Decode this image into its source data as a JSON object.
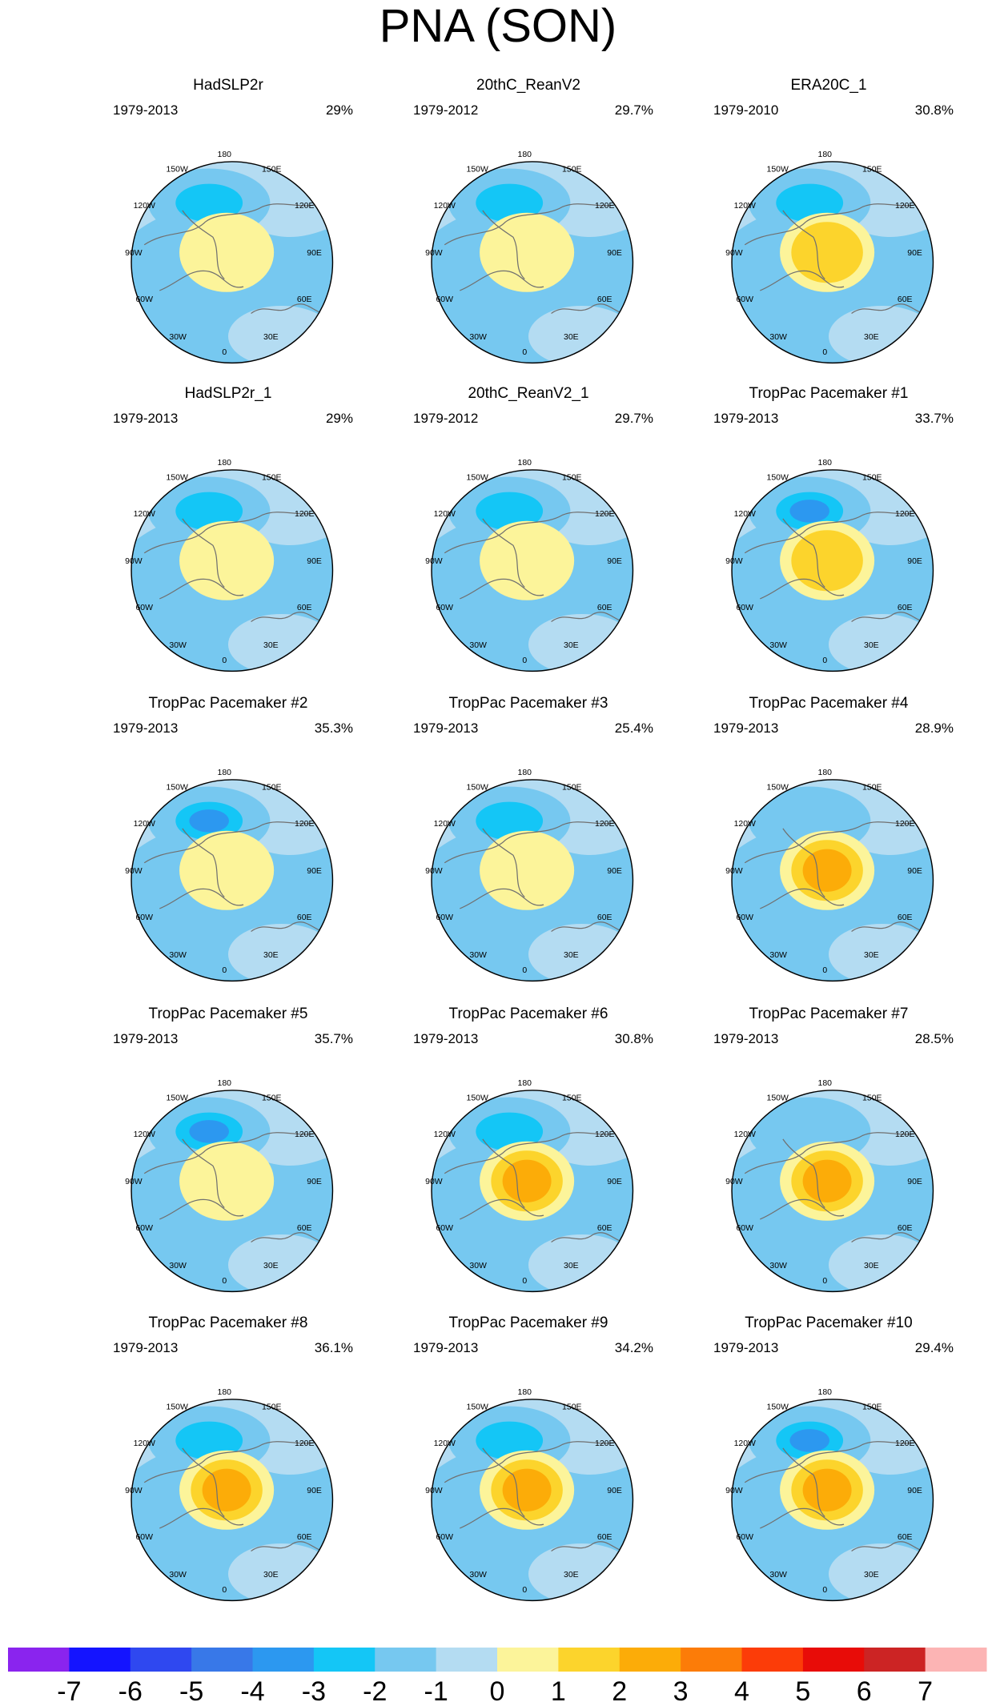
{
  "title": "PNA (SON)",
  "chart_data": {
    "type": "polar-contour-map-grid",
    "variable": "PNA sea level pressure pattern (SON)",
    "projection": "north-polar-stereographic",
    "longitude_labels": [
      "180",
      "150W",
      "150E",
      "120W",
      "120E",
      "90W",
      "90E",
      "60W",
      "60E",
      "30W",
      "30E",
      "0"
    ],
    "panels": [
      {
        "title": "HadSLP2r",
        "years": "1979-2013",
        "pct": "29%",
        "low": -2.6,
        "high": 0.8
      },
      {
        "title": "20thC_ReanV2",
        "years": "1979-2012",
        "pct": "29.7%",
        "low": -2.9,
        "high": 1.4
      },
      {
        "title": "ERA20C_1",
        "years": "1979-2010",
        "pct": "30.8%",
        "low": -3.2,
        "high": 2.2
      },
      {
        "title": "HadSLP2r_1",
        "years": "1979-2013",
        "pct": "29%",
        "low": -2.6,
        "high": 0.8
      },
      {
        "title": "20thC_ReanV2_1",
        "years": "1979-2012",
        "pct": "29.7%",
        "low": -2.9,
        "high": 1.4
      },
      {
        "title": "TropPac Pacemaker #1",
        "years": "1979-2013",
        "pct": "33.7%",
        "low": -3.6,
        "high": 1.9
      },
      {
        "title": "TropPac Pacemaker #2",
        "years": "1979-2013",
        "pct": "35.3%",
        "low": -4.1,
        "high": 1.2
      },
      {
        "title": "TropPac Pacemaker #3",
        "years": "1979-2013",
        "pct": "25.4%",
        "low": -3.4,
        "high": 0.9
      },
      {
        "title": "TropPac Pacemaker #4",
        "years": "1979-2013",
        "pct": "28.9%",
        "low": -2.1,
        "high": 3.3
      },
      {
        "title": "TropPac Pacemaker #5",
        "years": "1979-2013",
        "pct": "35.7%",
        "low": -4.3,
        "high": 1.1
      },
      {
        "title": "TropPac Pacemaker #6",
        "years": "1979-2013",
        "pct": "30.8%",
        "low": -2.6,
        "high": 2.9
      },
      {
        "title": "TropPac Pacemaker #7",
        "years": "1979-2013",
        "pct": "28.5%",
        "low": -2.2,
        "high": 3.1
      },
      {
        "title": "TropPac Pacemaker #8",
        "years": "1979-2013",
        "pct": "36.1%",
        "low": -3.4,
        "high": 2.6
      },
      {
        "title": "TropPac Pacemaker #9",
        "years": "1979-2013",
        "pct": "34.2%",
        "low": -2.7,
        "high": 2.8
      },
      {
        "title": "TropPac Pacemaker #10",
        "years": "1979-2013",
        "pct": "29.4%",
        "low": -3.6,
        "high": 2.6
      }
    ],
    "colorbar": {
      "labels": [
        "-7",
        "-6",
        "-5",
        "-4",
        "-3",
        "-2",
        "-1",
        "0",
        "1",
        "2",
        "3",
        "4",
        "5",
        "6",
        "7"
      ],
      "colors": [
        "#8a24ee",
        "#1414ff",
        "#2f48f0",
        "#3878e8",
        "#2c98f0",
        "#14c6f6",
        "#76c8f0",
        "#b4dcf2",
        "#fcf49a",
        "#fcd42c",
        "#fcac08",
        "#fc7c08",
        "#fc3c08",
        "#e80c08",
        "#cc2424",
        "#fcb4b4"
      ]
    }
  }
}
